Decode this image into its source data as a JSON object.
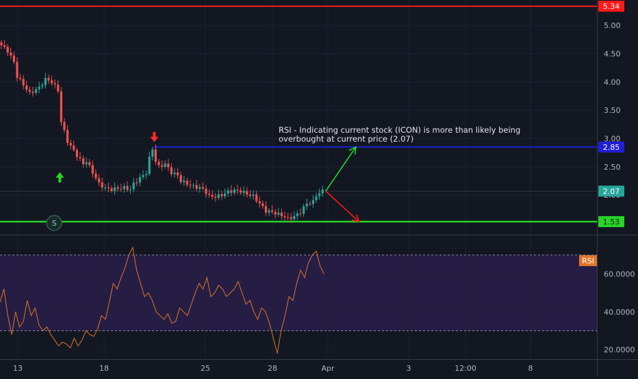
{
  "chart_data": [
    {
      "type": "candlestick",
      "ticker": "ICON",
      "price_axis": {
        "ticks": [
          "5.00",
          "4.50",
          "4.00",
          "3.50",
          "3.00",
          "2.50",
          "2.00"
        ],
        "ylim": [
          1.3,
          5.45
        ]
      },
      "horizontal_levels": [
        {
          "label": "5.34",
          "value": 5.34,
          "color": "#ff1a1a"
        },
        {
          "label": "2.85",
          "value": 2.85,
          "color": "#1f1fd6"
        },
        {
          "label": "2.07",
          "value": 2.07,
          "color": "#26a69a"
        },
        {
          "label": "1.53",
          "value": 1.53,
          "color": "#27d527"
        }
      ],
      "annotation": {
        "line1": "RSI - Indicating current stock (ICON) is more than likely being",
        "line2": "overbought at current price (2.07)"
      },
      "markers": {
        "split_label": "S",
        "up_arrow_color": "#27d527",
        "down_arrow_color": "#ff2a2a"
      },
      "colors": {
        "up": "#26a69a",
        "down": "#ef5350"
      },
      "price_path": [
        [
          0,
          4.7
        ],
        [
          3,
          4.55
        ],
        [
          5,
          4.35
        ],
        [
          6,
          4.1
        ],
        [
          8,
          3.95
        ],
        [
          10,
          3.8
        ],
        [
          13,
          3.9
        ],
        [
          15,
          4.05
        ],
        [
          17,
          4.0
        ],
        [
          19,
          3.85
        ],
        [
          20,
          3.3
        ],
        [
          22,
          2.95
        ],
        [
          25,
          2.7
        ],
        [
          27,
          2.55
        ],
        [
          28,
          2.6
        ],
        [
          30,
          2.4
        ],
        [
          32,
          2.2
        ],
        [
          34,
          2.12
        ],
        [
          36,
          2.1
        ],
        [
          38,
          2.12
        ],
        [
          40,
          2.13
        ],
        [
          42,
          2.1
        ],
        [
          43,
          2.2
        ],
        [
          45,
          2.3
        ],
        [
          47,
          2.4
        ],
        [
          48,
          2.65
        ],
        [
          49,
          2.82
        ],
        [
          50,
          2.6
        ],
        [
          51,
          2.5
        ],
        [
          53,
          2.55
        ],
        [
          55,
          2.4
        ],
        [
          57,
          2.35
        ],
        [
          58,
          2.25
        ],
        [
          60,
          2.2
        ],
        [
          62,
          2.15
        ],
        [
          64,
          2.13
        ],
        [
          65,
          2.1
        ],
        [
          66,
          2.05
        ],
        [
          67,
          1.98
        ],
        [
          69,
          1.97
        ],
        [
          71,
          2.0
        ],
        [
          73,
          2.06
        ],
        [
          75,
          2.08
        ],
        [
          77,
          2.07
        ],
        [
          79,
          2.02
        ],
        [
          81,
          1.98
        ],
        [
          85,
          1.72
        ],
        [
          87,
          1.7
        ],
        [
          89,
          1.66
        ],
        [
          91,
          1.62
        ],
        [
          92,
          1.58
        ],
        [
          94,
          1.62
        ],
        [
          96,
          1.7
        ],
        [
          98,
          1.85
        ],
        [
          100,
          1.88
        ],
        [
          101,
          2.0
        ],
        [
          103,
          2.07
        ]
      ],
      "up_arrow": {
        "x": 19,
        "y": 2.32
      },
      "down_arrow": {
        "x": 49,
        "y": 3.02
      },
      "split_marker": {
        "x": 22,
        "y": 1.53
      },
      "projection_arrows": [
        {
          "from": [
            103,
            2.07
          ],
          "to": [
            113,
            2.85
          ],
          "color": "#27d527"
        },
        {
          "from": [
            103,
            2.07
          ],
          "to": [
            114,
            1.53
          ],
          "color": "#ff1a1a"
        }
      ]
    },
    {
      "type": "line",
      "name": "RSI",
      "ticks": [
        "60.0000",
        "40.0000",
        "20.0000"
      ],
      "ylim": [
        15,
        80
      ],
      "bands": [
        70,
        30
      ],
      "band_fill": "#2a1f4a",
      "line_color": "#e0752a",
      "values": [
        45,
        52,
        38,
        28,
        40,
        32,
        35,
        46,
        38,
        42,
        33,
        30,
        32,
        28,
        25,
        22,
        24,
        23,
        21,
        26,
        22,
        25,
        30,
        28,
        27,
        31,
        38,
        36,
        45,
        55,
        52,
        58,
        63,
        70,
        74,
        62,
        55,
        48,
        50,
        46,
        40,
        38,
        36,
        39,
        34,
        35,
        42,
        40,
        38,
        44,
        50,
        55,
        52,
        58,
        48,
        50,
        54,
        52,
        48,
        50,
        52,
        56,
        50,
        44,
        46,
        40,
        36,
        42,
        40,
        34,
        26,
        18,
        30,
        38,
        48,
        46,
        55,
        62,
        58,
        66,
        70,
        72,
        64,
        60
      ]
    }
  ],
  "time_axis": {
    "labels": [
      "13",
      "18",
      "25",
      "28",
      "Apr",
      "3",
      "12:00",
      "8"
    ]
  }
}
